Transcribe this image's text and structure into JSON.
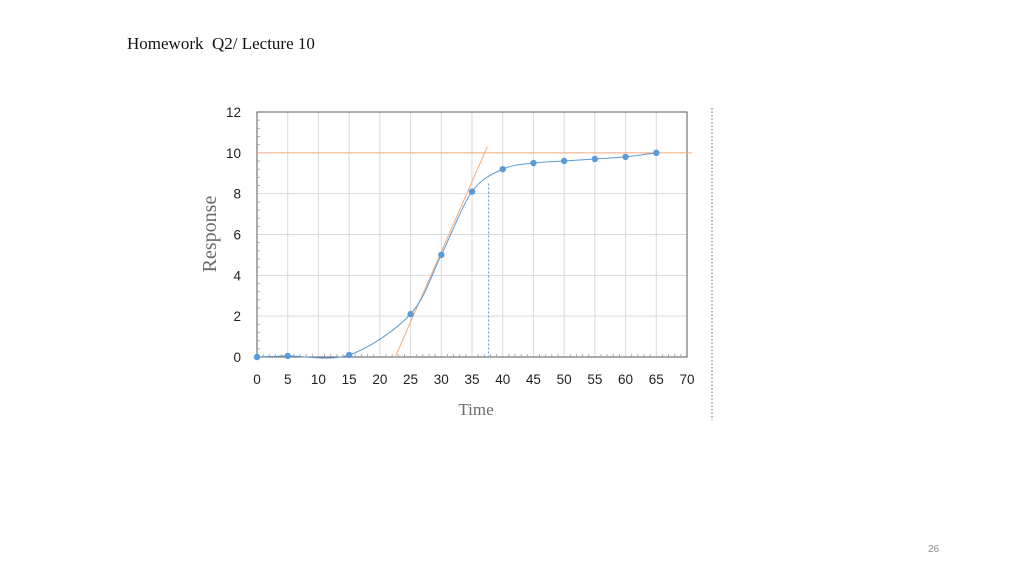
{
  "slide": {
    "title": "Homework  Q2/ Lecture 10",
    "page_number": "26"
  },
  "colors": {
    "series": "#5B9BD5",
    "reference_lines": "#F4B183",
    "grid": "#D9D9D9",
    "axis": "#595959"
  },
  "chart_data": {
    "type": "scatter",
    "title": "",
    "xlabel": "Time",
    "ylabel": "Response",
    "xlim": [
      0,
      70
    ],
    "ylim": [
      0,
      12
    ],
    "x_ticks": [
      0,
      5,
      10,
      15,
      20,
      25,
      30,
      35,
      40,
      45,
      50,
      55,
      60,
      65,
      70
    ],
    "y_ticks": [
      0,
      2,
      4,
      6,
      8,
      10,
      12
    ],
    "grid": true,
    "legend": "none",
    "series": [
      {
        "marker": "circle",
        "smooth_line": true,
        "points": [
          {
            "x": 0,
            "y": 0
          },
          {
            "x": 5,
            "y": 0.05
          },
          {
            "x": 15,
            "y": 0.1
          },
          {
            "x": 25,
            "y": 2.1
          },
          {
            "x": 30,
            "y": 5
          },
          {
            "x": 35,
            "y": 8.1
          },
          {
            "x": 40,
            "y": 9.2
          },
          {
            "x": 45,
            "y": 9.5
          },
          {
            "x": 50,
            "y": 9.6
          },
          {
            "x": 55,
            "y": 9.7
          },
          {
            "x": 60,
            "y": 9.8
          },
          {
            "x": 65,
            "y": 10
          }
        ]
      }
    ],
    "annotations": {
      "steady_state_line_y": 10,
      "tangent_line": {
        "x1": 22.5,
        "y1": 0,
        "x2": 37.5,
        "y2": 10.3
      },
      "dashed_drop_line_x": 37.7
    }
  }
}
